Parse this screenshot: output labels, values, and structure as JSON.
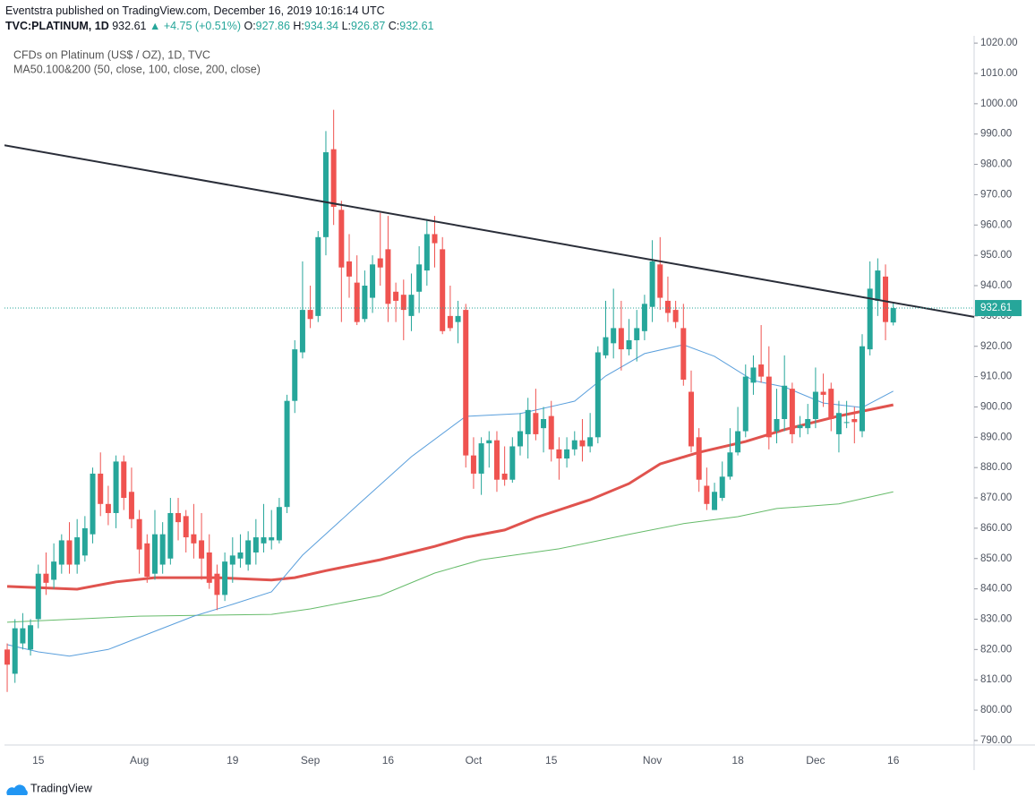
{
  "header": {
    "publisher": "Eventstra published on TradingView.com, December 16, 2019 10:16:14 UTC",
    "symbol": "TVC:PLATINUM, 1D",
    "last": "932.61",
    "change": "+4.75 (+0.51%)",
    "ohlc": [
      {
        "label": "O:",
        "value": "927.86"
      },
      {
        "label": "H:",
        "value": "934.34"
      },
      {
        "label": "L:",
        "value": "926.87"
      },
      {
        "label": "C:",
        "value": "932.61"
      }
    ]
  },
  "chart_data": {
    "type": "candlestick",
    "title": "CFDs on Platinum (US$ / OZ), 1D, TVC",
    "subtitle": "MA50.100&200 (50, close, 100, close, 200, close)",
    "categories": [
      null,
      null,
      null,
      null,
      "15",
      null,
      null,
      null,
      null,
      null,
      null,
      null,
      null,
      null,
      null,
      null,
      null,
      "Aug",
      null,
      null,
      null,
      null,
      null,
      null,
      null,
      null,
      null,
      null,
      null,
      "19",
      null,
      null,
      null,
      null,
      null,
      null,
      null,
      null,
      null,
      "Sep",
      null,
      null,
      null,
      null,
      null,
      null,
      null,
      null,
      null,
      "16",
      null,
      null,
      null,
      null,
      null,
      null,
      null,
      null,
      null,
      null,
      "Oct",
      null,
      null,
      null,
      null,
      null,
      null,
      null,
      null,
      null,
      "15",
      null,
      null,
      null,
      null,
      null,
      null,
      null,
      null,
      null,
      null,
      null,
      null,
      "Nov",
      null,
      null,
      null,
      null,
      null,
      null,
      null,
      null,
      null,
      null,
      "18",
      null,
      null,
      null,
      null,
      null,
      null,
      null,
      null,
      null,
      "Dec",
      null,
      null,
      null,
      null,
      null,
      null,
      null,
      null,
      null,
      "16"
    ],
    "open": [
      820,
      812,
      822,
      820,
      830,
      845,
      843,
      848,
      856,
      848,
      851,
      858,
      878,
      868,
      865,
      882,
      872,
      863,
      855,
      845,
      848,
      850,
      865,
      864,
      858,
      856,
      852,
      845,
      838,
      848,
      850,
      848,
      852,
      855,
      856,
      856,
      867,
      902,
      918,
      932,
      930,
      956,
      985,
      965,
      948,
      941,
      929,
      936,
      949,
      952,
      938,
      937,
      930,
      938,
      945,
      957,
      952,
      930,
      928,
      932,
      884,
      878,
      888,
      889,
      878,
      876,
      887,
      891,
      898,
      893,
      897,
      886,
      883,
      886,
      889,
      887,
      890,
      917,
      921,
      926,
      919,
      922,
      925,
      933,
      947,
      935,
      932,
      926,
      905,
      890,
      874,
      866,
      870,
      877,
      885,
      892,
      908,
      914,
      910,
      892,
      896,
      906,
      893,
      893,
      896,
      905,
      906,
      891,
      895,
      896,
      892,
      919,
      935,
      943,
      927.86
    ],
    "high": [
      822,
      830,
      832,
      830,
      848,
      852,
      855,
      858,
      862,
      863,
      864,
      880,
      885,
      874,
      884,
      884,
      880,
      866,
      858,
      866,
      862,
      870,
      870,
      866,
      868,
      865,
      858,
      848,
      852,
      857,
      858,
      859,
      863,
      868,
      866,
      870,
      904,
      922,
      948,
      940,
      958,
      991,
      998,
      968,
      957,
      950,
      945,
      950,
      964,
      963,
      941,
      942,
      944,
      953,
      962,
      963,
      956,
      940,
      935,
      934,
      890,
      890,
      892,
      892,
      887,
      890,
      898,
      903,
      906,
      900,
      902,
      890,
      890,
      892,
      896,
      898,
      920,
      935,
      939,
      935,
      929,
      932,
      937,
      955,
      956,
      943,
      935,
      934,
      912,
      893,
      880,
      875,
      882,
      893,
      900,
      914,
      917,
      927,
      920,
      906,
      917,
      908,
      897,
      901,
      913,
      911,
      908,
      902,
      902,
      900,
      924,
      948,
      949,
      947,
      934.34
    ],
    "low": [
      806,
      809,
      820,
      818,
      827,
      838,
      840,
      845,
      845,
      845,
      849,
      855,
      864,
      861,
      860,
      866,
      860,
      845,
      842,
      843,
      845,
      848,
      856,
      852,
      850,
      843,
      840,
      833,
      836,
      842,
      847,
      846,
      848,
      852,
      853,
      855,
      865,
      898,
      916,
      926,
      928,
      950,
      960,
      928,
      936,
      927,
      928,
      931,
      940,
      928,
      928,
      922,
      925,
      931,
      940,
      946,
      924,
      925,
      921,
      880,
      873,
      871,
      880,
      872,
      874,
      875,
      884,
      883,
      889,
      885,
      882,
      876,
      880,
      884,
      882,
      885,
      888,
      916,
      916,
      912,
      917,
      915,
      922,
      928,
      932,
      928,
      926,
      907,
      885,
      872,
      866,
      866,
      869,
      876,
      884,
      890,
      904,
      908,
      886,
      888,
      892,
      888,
      890,
      891,
      893,
      900,
      892,
      885,
      893,
      888,
      890,
      917,
      930,
      922,
      926.87
    ],
    "close": [
      815,
      827,
      827,
      828,
      845,
      842,
      849,
      856,
      848,
      857,
      860,
      878,
      868,
      865,
      882,
      870,
      863,
      853,
      844,
      858,
      858,
      865,
      862,
      857,
      855,
      850,
      842,
      838,
      849,
      851,
      852,
      856,
      857,
      857,
      857,
      867,
      902,
      919,
      932,
      929,
      956,
      984,
      966,
      946,
      943,
      928,
      940,
      947,
      946,
      934,
      935,
      932,
      937,
      947,
      957,
      954,
      925,
      926,
      930,
      884,
      878,
      888,
      889,
      876,
      876,
      887,
      892,
      899,
      891,
      896,
      886,
      883,
      886,
      889,
      887,
      890,
      918,
      923,
      926,
      919,
      922,
      926,
      934,
      948,
      936,
      931,
      928,
      909,
      887,
      876,
      868,
      872,
      877,
      885,
      892,
      910,
      913,
      910,
      890,
      896,
      907,
      891,
      894,
      896,
      905,
      904,
      896,
      898,
      895,
      895,
      920,
      939,
      945,
      928,
      932.61
    ],
    "up_color": "#26a69a",
    "down_color": "#ef5350",
    "xlim": [
      -0.35,
      124.4
    ],
    "ylim": [
      788.5,
      1022.4
    ],
    "yticks": [
      {
        "value": 790,
        "label": "790.00"
      },
      {
        "value": 800,
        "label": "800.00"
      },
      {
        "value": 810,
        "label": "810.00"
      },
      {
        "value": 820,
        "label": "820.00"
      },
      {
        "value": 830,
        "label": "830.00"
      },
      {
        "value": 840,
        "label": "840.00"
      },
      {
        "value": 850,
        "label": "850.00"
      },
      {
        "value": 860,
        "label": "860.00"
      },
      {
        "value": 870,
        "label": "870.00"
      },
      {
        "value": 880,
        "label": "880.00"
      },
      {
        "value": 890,
        "label": "890.00"
      },
      {
        "value": 900,
        "label": "900.00"
      },
      {
        "value": 910,
        "label": "910.00"
      },
      {
        "value": 920,
        "label": "920.00"
      },
      {
        "value": 930,
        "label": "930.00"
      },
      {
        "value": 940,
        "label": "940.00"
      },
      {
        "value": 950,
        "label": "950.00"
      },
      {
        "value": 960,
        "label": "960.00"
      },
      {
        "value": 970,
        "label": "970.00"
      },
      {
        "value": 980,
        "label": "980.00"
      },
      {
        "value": 990,
        "label": "990.00"
      },
      {
        "value": 1000,
        "label": "1000.00"
      },
      {
        "value": 1010,
        "label": "1010.00"
      },
      {
        "value": 1020,
        "label": "1020.00"
      }
    ],
    "price_line": 932.61,
    "price_color": "#26a69a",
    "overlays": [
      {
        "color": "#e0534e",
        "x": [
          0,
          9,
          14,
          19,
          27,
          34,
          37,
          41,
          48,
          55,
          59,
          64,
          68,
          75,
          80,
          84,
          89,
          95,
          100,
          107,
          114
        ],
        "values": [
          840.8,
          839.9,
          842.3,
          843.7,
          843.7,
          842.9,
          843.7,
          846,
          849.6,
          854,
          857,
          859.4,
          863.5,
          869.4,
          874.7,
          881.2,
          885,
          888.6,
          892.5,
          897,
          900.7
        ]
      },
      {
        "color": "#66bb6a",
        "x": [
          0,
          17,
          34,
          39,
          48,
          55,
          61,
          71,
          80,
          87,
          94,
          99,
          107,
          114
        ],
        "values": [
          829,
          831,
          831.6,
          833.4,
          837.8,
          845.2,
          849.6,
          853.2,
          858,
          861.5,
          863.8,
          866.5,
          868,
          872
        ]
      },
      {
        "color": "#5a9fdc",
        "x": [
          0,
          4,
          8,
          13,
          18,
          24,
          29,
          34,
          38,
          45,
          52,
          59,
          66,
          73,
          77,
          82,
          87,
          91,
          96,
          100,
          105,
          110,
          114
        ],
        "values": [
          821.6,
          819.2,
          817.8,
          820,
          825,
          831,
          834.9,
          839,
          851.1,
          867.4,
          883.6,
          896.9,
          897.8,
          901.9,
          910.2,
          917.6,
          920.5,
          916.7,
          908.7,
          906.6,
          901.3,
          899.8,
          905.2
        ]
      }
    ],
    "trendline": {
      "color": "#2a2e39",
      "x": [
        -0.35,
        124.4
      ],
      "values": [
        986.3,
        929.7
      ]
    }
  },
  "footer": {
    "brand": "TradingView"
  }
}
